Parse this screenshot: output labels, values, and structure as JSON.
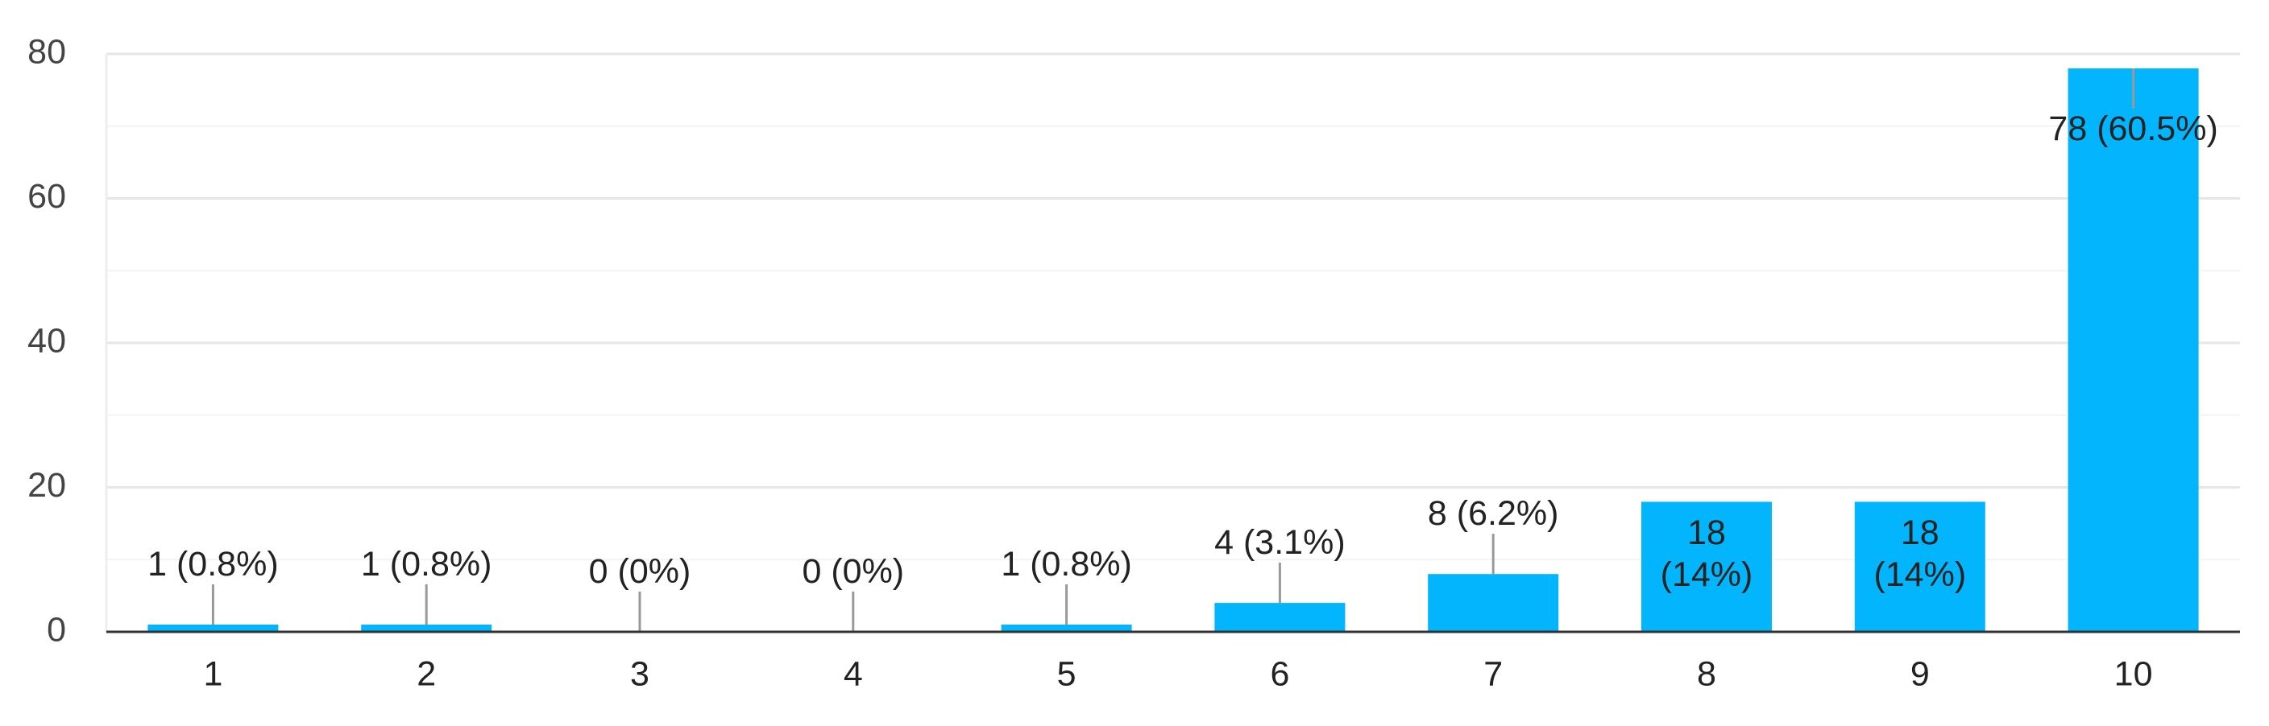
{
  "chart_data": {
    "type": "bar",
    "categories": [
      "1",
      "2",
      "3",
      "4",
      "5",
      "6",
      "7",
      "8",
      "9",
      "10"
    ],
    "values": [
      1,
      1,
      0,
      0,
      1,
      4,
      8,
      18,
      18,
      78
    ],
    "value_labels": [
      "1 (0.8%)",
      "1 (0.8%)",
      "0 (0%)",
      "0 (0%)",
      "1 (0.8%)",
      "4 (3.1%)",
      "8 (6.2%)",
      "18 (14%)",
      "18 (14%)",
      "78 (60.5%)"
    ],
    "color": "#03b5fc",
    "ylim": [
      0,
      80
    ],
    "yticks": [
      0,
      20,
      40,
      60,
      80
    ],
    "grid": true
  }
}
